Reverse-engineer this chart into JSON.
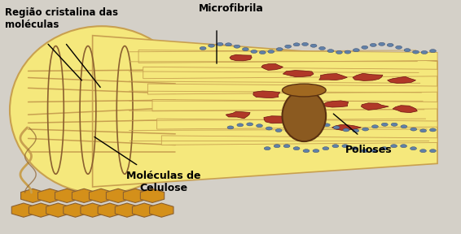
{
  "bg_color": "#d4d0c8",
  "labels": {
    "regiao": "Região cristalina das\nmoléculas",
    "microfibrila": "Microfibrila",
    "moleculas": "Moléculas de\nCelulose",
    "polioses": "Polioses"
  },
  "yellow_color": "#F5E87C",
  "tan_color": "#C8A050",
  "brown_color": "#8B6030",
  "blue_color": "#6080A8",
  "red_color": "#B03828",
  "dark_yellow": "#D4A830",
  "hex_color": "#D4901A",
  "cyl_color": "#8B5A20",
  "cyl_edge": "#5A3010",
  "cyl_top_color": "#A06820"
}
